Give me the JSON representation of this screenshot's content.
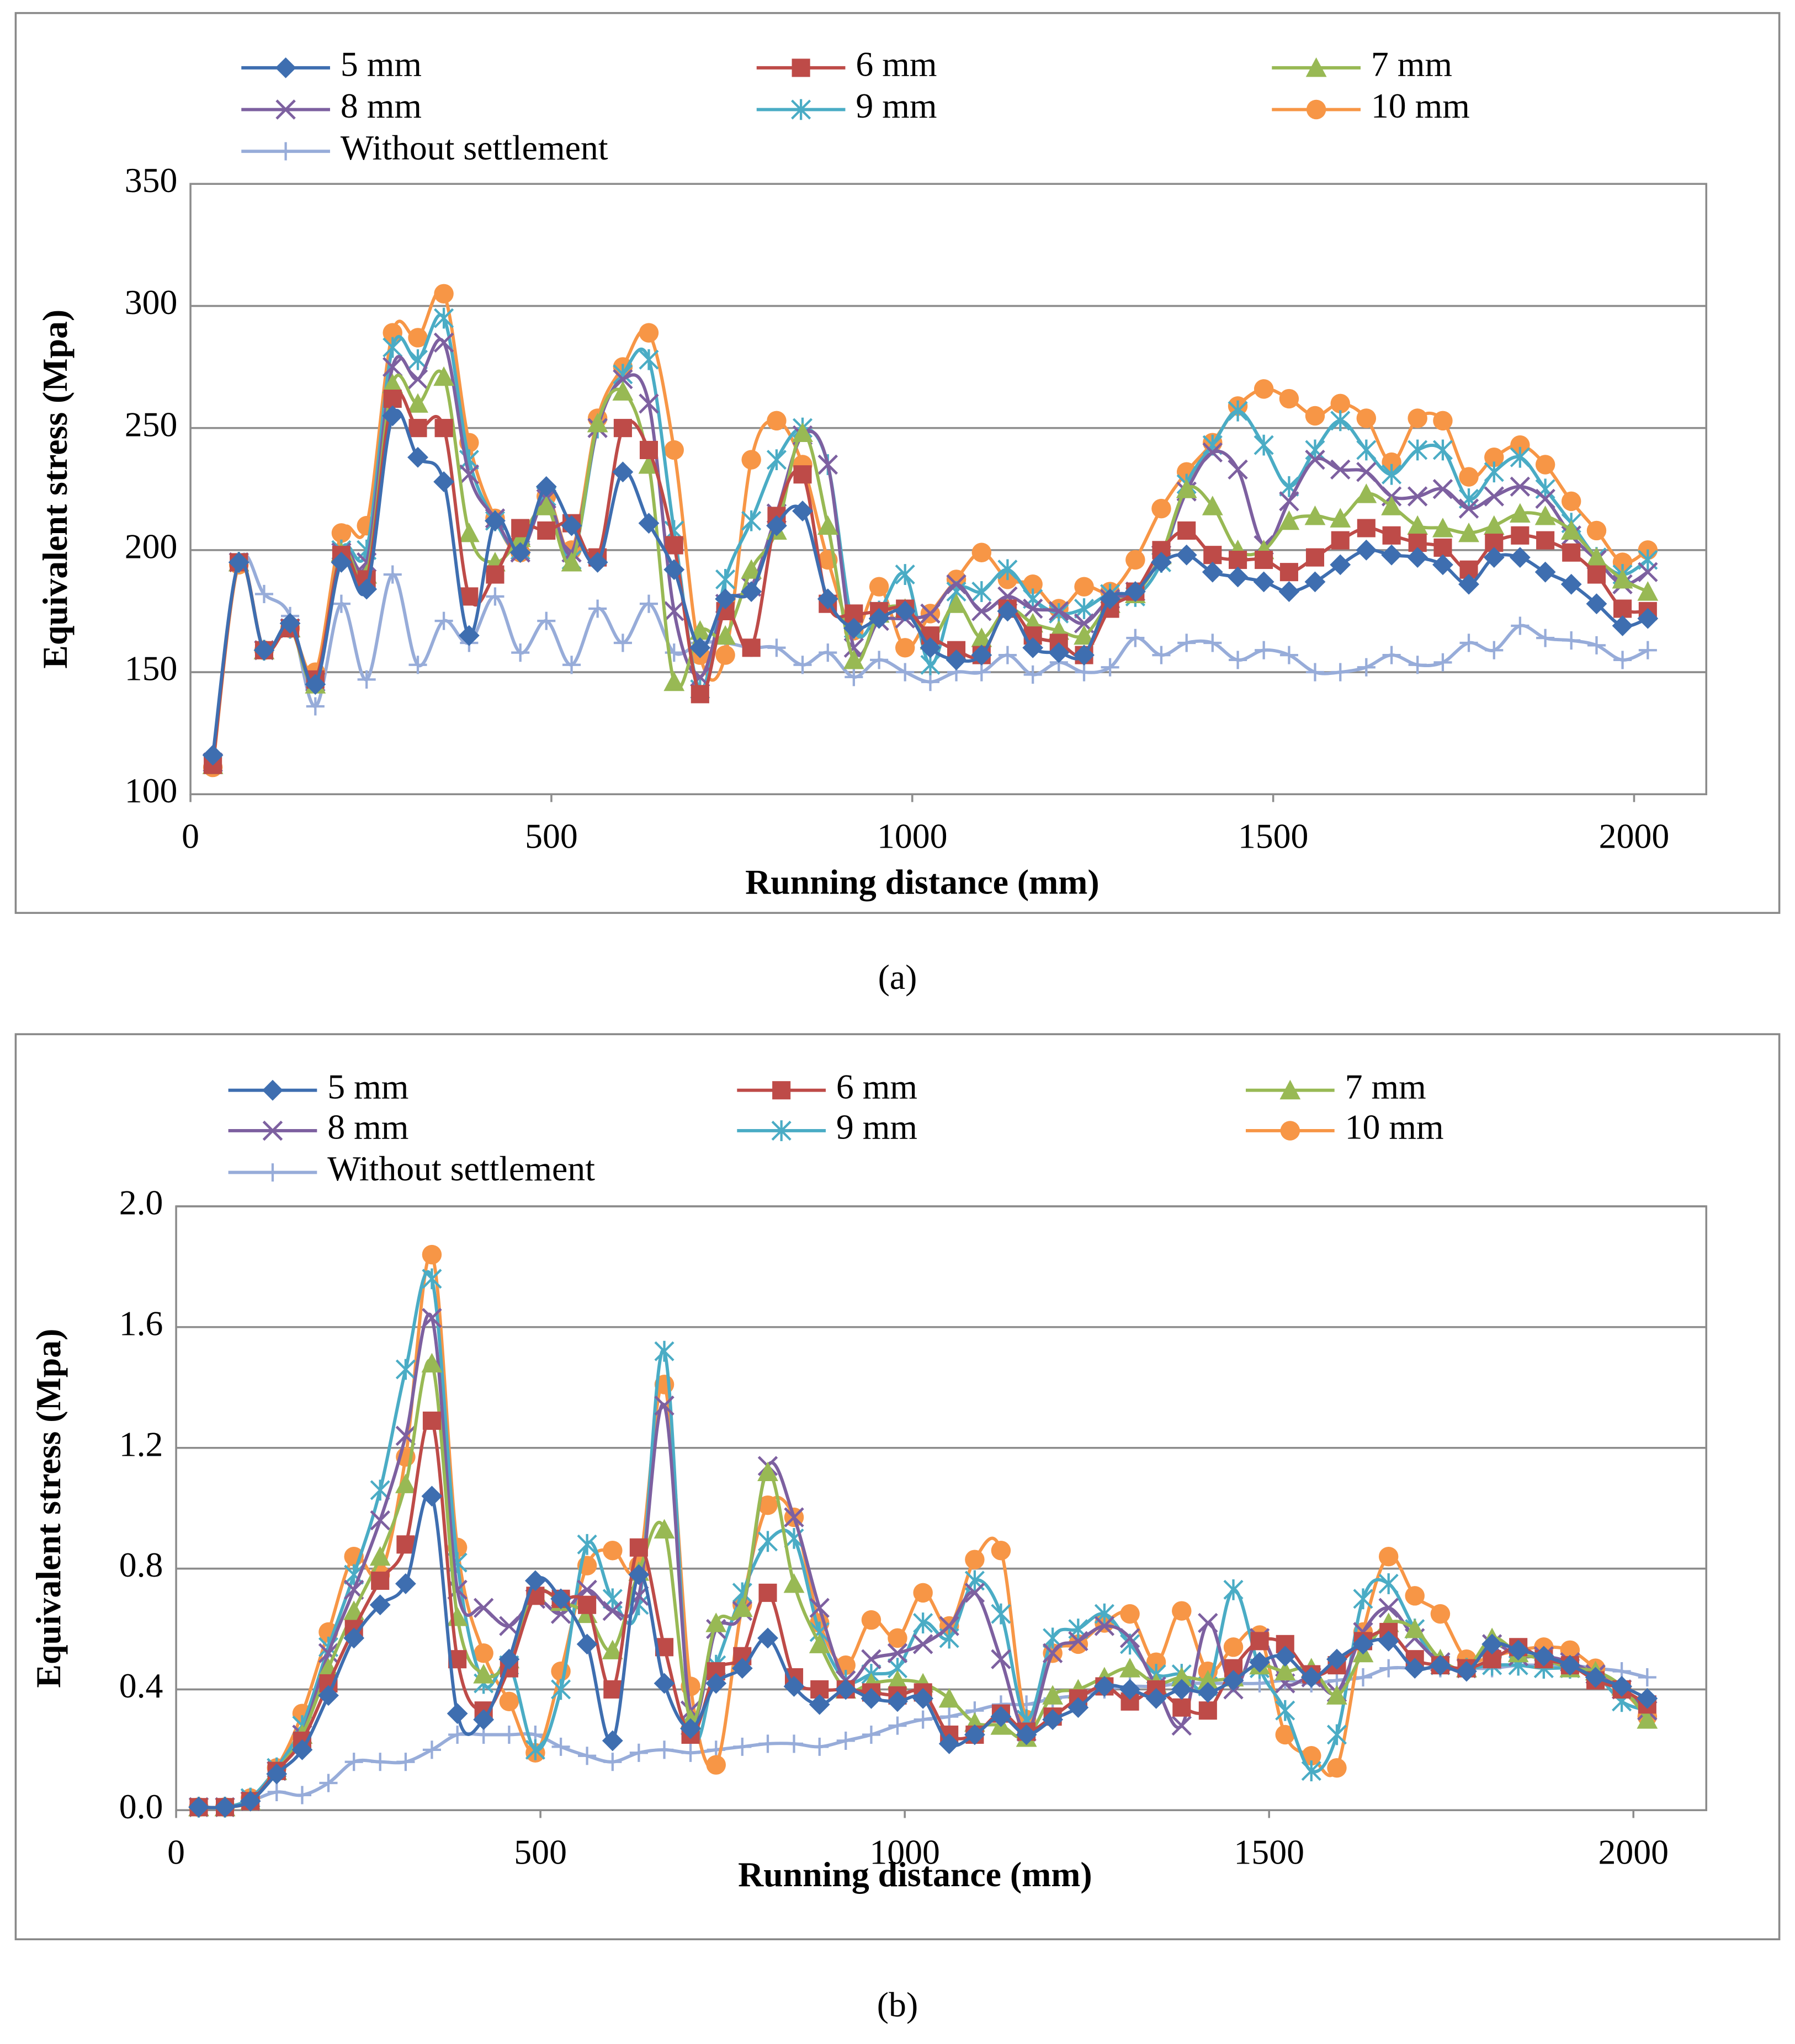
{
  "chart_data": [
    {
      "type": "line",
      "caption": "(a)",
      "xlabel": "Running distance (mm)",
      "ylabel": "Equivalent stress (Mpa)",
      "xlim": [
        0,
        2100
      ],
      "xticks": [
        0,
        500,
        1000,
        1500,
        2000
      ],
      "ylim": [
        100,
        350
      ],
      "yticks": [
        100,
        150,
        200,
        250,
        300,
        350
      ],
      "grid": true,
      "x": [
        31,
        67,
        102,
        138,
        173,
        209,
        244,
        280,
        315,
        351,
        386,
        422,
        457,
        493,
        528,
        564,
        599,
        635,
        670,
        706,
        741,
        777,
        812,
        848,
        883,
        919,
        954,
        990,
        1025,
        1061,
        1096,
        1132,
        1167,
        1203,
        1238,
        1274,
        1309,
        1345,
        1380,
        1416,
        1451,
        1487,
        1522,
        1558,
        1593,
        1629,
        1664,
        1700,
        1735,
        1771,
        1806,
        1842,
        1877,
        1913,
        1948,
        1984,
        2019
      ],
      "series": [
        {
          "name": "5 mm",
          "color": "#3e6eb0",
          "marker": "diamond",
          "values": [
            116,
            195,
            159,
            170,
            145,
            195,
            184,
            255,
            238,
            228,
            165,
            212,
            199,
            226,
            210,
            195,
            232,
            211,
            192,
            160,
            180,
            183,
            210,
            216,
            180,
            168,
            172,
            175,
            160,
            155,
            157,
            175,
            160,
            158,
            157,
            180,
            183,
            195,
            198,
            191,
            189,
            187,
            183,
            187,
            194,
            200,
            198,
            197,
            194,
            186,
            197,
            197,
            191,
            186,
            178,
            169,
            172
          ]
        },
        {
          "name": "6 mm",
          "color": "#be4b48",
          "marker": "square",
          "values": [
            112,
            195,
            159,
            168,
            147,
            198,
            188,
            262,
            250,
            250,
            181,
            190,
            209,
            208,
            211,
            197,
            250,
            241,
            202,
            141,
            175,
            160,
            214,
            231,
            178,
            174,
            175,
            176,
            165,
            159,
            157,
            176,
            165,
            162,
            157,
            176,
            183,
            200,
            208,
            198,
            196,
            196,
            191,
            197,
            204,
            209,
            206,
            203,
            201,
            192,
            203,
            206,
            204,
            199,
            190,
            176,
            175
          ]
        },
        {
          "name": "7 mm",
          "color": "#98b954",
          "marker": "triangle",
          "values": [
            112,
            195,
            159,
            168,
            145,
            199,
            190,
            268,
            260,
            271,
            207,
            195,
            205,
            218,
            195,
            252,
            265,
            235,
            146,
            167,
            165,
            192,
            208,
            248,
            210,
            155,
            174,
            176,
            163,
            178,
            164,
            176,
            170,
            167,
            165,
            178,
            182,
            198,
            225,
            218,
            200,
            200,
            212,
            214,
            213,
            223,
            218,
            210,
            209,
            207,
            210,
            215,
            214,
            208,
            197,
            188,
            183
          ]
        },
        {
          "name": "8 mm",
          "color": "#7d60a0",
          "marker": "x",
          "values": [
            113,
            195,
            159,
            168,
            146,
            199,
            195,
            275,
            270,
            285,
            231,
            213,
            199,
            221,
            199,
            250,
            270,
            260,
            175,
            148,
            178,
            185,
            215,
            247,
            235,
            160,
            171,
            172,
            174,
            186,
            175,
            181,
            176,
            175,
            170,
            180,
            183,
            198,
            224,
            240,
            233,
            202,
            220,
            237,
            233,
            232,
            222,
            222,
            225,
            217,
            222,
            226,
            221,
            206,
            196,
            186,
            191
          ]
        },
        {
          "name": "9 mm",
          "color": "#4aacc5",
          "marker": "asterisk",
          "values": [
            113,
            195,
            159,
            168,
            146,
            200,
            200,
            283,
            278,
            295,
            237,
            212,
            200,
            222,
            196,
            250,
            272,
            278,
            208,
            143,
            188,
            212,
            237,
            250,
            235,
            168,
            175,
            190,
            153,
            183,
            183,
            192,
            180,
            174,
            176,
            182,
            181,
            195,
            227,
            243,
            257,
            243,
            226,
            241,
            253,
            241,
            231,
            241,
            241,
            221,
            232,
            238,
            225,
            211,
            197,
            190,
            196
          ]
        },
        {
          "name": "10 mm",
          "color": "#f79646",
          "marker": "circle",
          "values": [
            111,
            194,
            159,
            168,
            150,
            207,
            210,
            289,
            287,
            305,
            244,
            213,
            199,
            222,
            200,
            254,
            275,
            289,
            241,
            157,
            157,
            237,
            253,
            235,
            196,
            167,
            185,
            160,
            174,
            188,
            199,
            188,
            186,
            176,
            185,
            183,
            196,
            217,
            232,
            244,
            259,
            266,
            262,
            255,
            260,
            254,
            236,
            254,
            253,
            230,
            238,
            243,
            235,
            220,
            208,
            195,
            200
          ]
        },
        {
          "name": "Without settlement",
          "color": "#97acd9",
          "marker": "plus",
          "values": [
            115,
            195,
            182,
            173,
            136,
            178,
            147,
            190,
            153,
            171,
            162,
            181,
            158,
            171,
            153,
            176,
            162,
            178,
            158,
            162,
            162,
            160,
            160,
            153,
            158,
            148,
            155,
            150,
            146,
            150,
            150,
            157,
            149,
            154,
            150,
            152,
            164,
            157,
            162,
            162,
            155,
            159,
            157,
            150,
            150,
            152,
            157,
            153,
            154,
            162,
            159,
            169,
            164,
            163,
            161,
            155,
            159
          ]
        }
      ]
    },
    {
      "type": "line",
      "caption": "(b)",
      "xlabel": "Running distance (mm)",
      "ylabel": "Equivalent stress (Mpa)",
      "xlim": [
        0,
        2100
      ],
      "xticks": [
        0,
        500,
        1000,
        1500,
        2000
      ],
      "ylim": [
        0,
        2.0
      ],
      "yticks": [
        {
          "value": 0,
          "label": "0.0"
        },
        0.4,
        0.8,
        1.2,
        1.6,
        {
          "value": 2,
          "label": "2.0"
        }
      ],
      "grid": true,
      "x": [
        31,
        67,
        102,
        138,
        173,
        209,
        244,
        280,
        315,
        351,
        386,
        422,
        457,
        493,
        528,
        564,
        599,
        635,
        670,
        706,
        741,
        777,
        812,
        848,
        883,
        919,
        954,
        990,
        1025,
        1061,
        1096,
        1132,
        1167,
        1203,
        1238,
        1274,
        1309,
        1345,
        1380,
        1416,
        1451,
        1487,
        1522,
        1558,
        1593,
        1629,
        1664,
        1700,
        1735,
        1771,
        1806,
        1842,
        1877,
        1913,
        1948,
        1984,
        2019
      ],
      "series": [
        {
          "name": "5 mm",
          "color": "#3e6eb0",
          "marker": "diamond",
          "values": [
            0.01,
            0.01,
            0.03,
            0.12,
            0.2,
            0.38,
            0.57,
            0.68,
            0.75,
            1.04,
            0.32,
            0.3,
            0.5,
            0.76,
            0.7,
            0.55,
            0.23,
            0.78,
            0.42,
            0.27,
            0.42,
            0.47,
            0.57,
            0.41,
            0.35,
            0.4,
            0.37,
            0.36,
            0.37,
            0.22,
            0.25,
            0.31,
            0.25,
            0.3,
            0.34,
            0.41,
            0.4,
            0.37,
            0.4,
            0.39,
            0.43,
            0.49,
            0.51,
            0.44,
            0.5,
            0.55,
            0.56,
            0.47,
            0.48,
            0.46,
            0.55,
            0.53,
            0.51,
            0.48,
            0.44,
            0.41,
            0.37
          ]
        },
        {
          "name": "6 mm",
          "color": "#be4b48",
          "marker": "square",
          "values": [
            0.01,
            0.01,
            0.03,
            0.13,
            0.23,
            0.42,
            0.6,
            0.76,
            0.88,
            1.29,
            0.5,
            0.33,
            0.47,
            0.71,
            0.7,
            0.68,
            0.4,
            0.87,
            0.54,
            0.25,
            0.46,
            0.51,
            0.72,
            0.44,
            0.4,
            0.4,
            0.39,
            0.38,
            0.39,
            0.25,
            0.25,
            0.32,
            0.26,
            0.31,
            0.37,
            0.41,
            0.36,
            0.4,
            0.34,
            0.33,
            0.47,
            0.56,
            0.55,
            0.45,
            0.48,
            0.56,
            0.59,
            0.5,
            0.48,
            0.47,
            0.5,
            0.54,
            0.5,
            0.48,
            0.43,
            0.4,
            0.35
          ]
        },
        {
          "name": "7 mm",
          "color": "#98b954",
          "marker": "triangle",
          "values": [
            0.01,
            0.01,
            0.03,
            0.13,
            0.25,
            0.47,
            0.66,
            0.84,
            1.08,
            1.48,
            0.64,
            0.45,
            0.5,
            0.72,
            0.69,
            0.65,
            0.53,
            0.79,
            0.93,
            0.3,
            0.62,
            0.67,
            1.12,
            0.75,
            0.55,
            0.4,
            0.42,
            0.43,
            0.42,
            0.37,
            0.29,
            0.28,
            0.24,
            0.38,
            0.4,
            0.44,
            0.47,
            0.42,
            0.44,
            0.43,
            0.44,
            0.48,
            0.46,
            0.47,
            0.38,
            0.52,
            0.62,
            0.6,
            0.5,
            0.47,
            0.57,
            0.52,
            0.5,
            0.47,
            0.46,
            0.41,
            0.3
          ]
        },
        {
          "name": "8 mm",
          "color": "#7d60a0",
          "marker": "x",
          "values": [
            0.01,
            0.01,
            0.03,
            0.13,
            0.25,
            0.52,
            0.73,
            0.96,
            1.24,
            1.63,
            0.73,
            0.67,
            0.61,
            0.7,
            0.65,
            0.73,
            0.66,
            0.71,
            1.34,
            0.33,
            0.6,
            0.66,
            1.14,
            0.97,
            0.67,
            0.43,
            0.5,
            0.52,
            0.55,
            0.61,
            0.72,
            0.5,
            0.26,
            0.52,
            0.56,
            0.61,
            0.57,
            0.41,
            0.28,
            0.62,
            0.4,
            0.57,
            0.42,
            0.44,
            0.39,
            0.59,
            0.67,
            0.57,
            0.49,
            0.47,
            0.55,
            0.51,
            0.51,
            0.49,
            0.45,
            0.4,
            0.33
          ]
        },
        {
          "name": "9 mm",
          "color": "#4aacc5",
          "marker": "asterisk",
          "values": [
            0.01,
            0.01,
            0.04,
            0.14,
            0.28,
            0.54,
            0.78,
            1.06,
            1.46,
            1.76,
            0.82,
            0.42,
            0.48,
            0.2,
            0.4,
            0.88,
            0.7,
            0.68,
            1.52,
            0.28,
            0.48,
            0.72,
            0.89,
            0.9,
            0.59,
            0.43,
            0.45,
            0.47,
            0.62,
            0.57,
            0.76,
            0.65,
            0.3,
            0.57,
            0.6,
            0.65,
            0.55,
            0.45,
            0.45,
            0.41,
            0.73,
            0.47,
            0.33,
            0.13,
            0.25,
            0.7,
            0.75,
            0.6,
            0.48,
            0.47,
            0.48,
            0.48,
            0.47,
            0.47,
            0.45,
            0.36,
            0.33
          ]
        },
        {
          "name": "10 mm",
          "color": "#f79646",
          "marker": "circle",
          "values": [
            0.01,
            0.01,
            0.04,
            0.14,
            0.32,
            0.59,
            0.84,
            0.78,
            1.17,
            1.84,
            0.87,
            0.52,
            0.36,
            0.19,
            0.46,
            0.81,
            0.86,
            0.81,
            1.41,
            0.41,
            0.15,
            0.68,
            1.01,
            0.97,
            0.62,
            0.48,
            0.63,
            0.57,
            0.72,
            0.61,
            0.83,
            0.86,
            0.3,
            0.52,
            0.55,
            0.62,
            0.65,
            0.49,
            0.66,
            0.46,
            0.54,
            0.58,
            0.25,
            0.18,
            0.14,
            0.59,
            0.84,
            0.71,
            0.65,
            0.5,
            0.51,
            0.53,
            0.54,
            0.53,
            0.47,
            0.4,
            0.31
          ]
        },
        {
          "name": "Without settlement",
          "color": "#97acd9",
          "marker": "plus",
          "values": [
            0.01,
            0.01,
            0.03,
            0.06,
            0.05,
            0.09,
            0.16,
            0.16,
            0.16,
            0.2,
            0.25,
            0.25,
            0.25,
            0.25,
            0.21,
            0.18,
            0.16,
            0.19,
            0.2,
            0.19,
            0.2,
            0.21,
            0.22,
            0.22,
            0.21,
            0.23,
            0.25,
            0.28,
            0.3,
            0.31,
            0.33,
            0.35,
            0.35,
            0.37,
            0.38,
            0.4,
            0.41,
            0.41,
            0.42,
            0.42,
            0.42,
            0.42,
            0.43,
            0.42,
            0.43,
            0.44,
            0.47,
            0.47,
            0.47,
            0.47,
            0.47,
            0.48,
            0.48,
            0.48,
            0.47,
            0.46,
            0.44
          ]
        }
      ]
    }
  ]
}
